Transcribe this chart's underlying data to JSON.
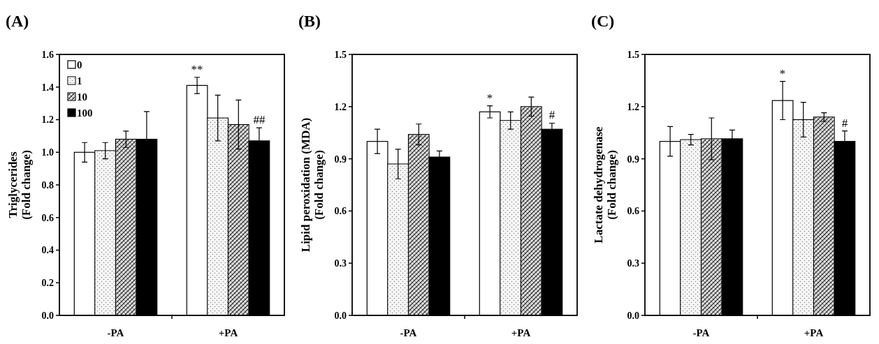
{
  "chart_data": [
    {
      "type": "bar",
      "title": "(A)",
      "ylabel": "Triglycerides\n(Fold change)",
      "categories": [
        "-PA",
        "+PA"
      ],
      "ylim": [
        0,
        1.6
      ],
      "yticks": [
        {
          "value": 0,
          "label": "0.0"
        },
        {
          "value": 0.2,
          "label": "0.2"
        },
        {
          "value": 0.4,
          "label": "0.4"
        },
        {
          "value": 0.6,
          "label": "0.6"
        },
        {
          "value": 0.8,
          "label": "0.8"
        },
        {
          "value": 1,
          "label": "1.0"
        },
        {
          "value": 1.2,
          "label": "1.2"
        },
        {
          "value": 1.4,
          "label": "1.4"
        },
        {
          "value": 1.6,
          "label": "1.6"
        }
      ],
      "legend": "top left",
      "grid": false,
      "series": [
        {
          "name": "0",
          "color": "#ffffff",
          "values": [
            1.0,
            1.41
          ],
          "errors": [
            0.06,
            0.05
          ],
          "value_labels": [
            null,
            "**"
          ]
        },
        {
          "name": "1",
          "color": "#f4f4f4",
          "values": [
            1.01,
            1.21
          ],
          "errors": [
            0.05,
            0.14
          ]
        },
        {
          "name": "10",
          "color": "#dddddd",
          "values": [
            1.08,
            1.17
          ],
          "errors": [
            0.05,
            0.15
          ]
        },
        {
          "name": "100",
          "color": "#000000",
          "values": [
            1.08,
            1.07
          ],
          "errors": [
            0.17,
            0.08
          ],
          "value_labels": [
            null,
            "##"
          ]
        }
      ]
    },
    {
      "type": "bar",
      "title": "(B)",
      "ylabel": "Lipid peroxidation (MDA)\n(Fold change)",
      "categories": [
        "-PA",
        "+PA"
      ],
      "ylim": [
        0,
        1.5
      ],
      "yticks": [
        {
          "value": 0,
          "label": "0.0"
        },
        {
          "value": 0.3,
          "label": "0.3"
        },
        {
          "value": 0.6,
          "label": "0.6"
        },
        {
          "value": 0.9,
          "label": "0.9"
        },
        {
          "value": 1.2,
          "label": "1.2"
        },
        {
          "value": 1.5,
          "label": "1.5"
        }
      ],
      "grid": false,
      "series": [
        {
          "color": "#ffffff",
          "values": [
            1.0,
            1.17
          ],
          "errors": [
            0.07,
            0.035
          ],
          "value_labels": [
            null,
            "*"
          ]
        },
        {
          "color": "#f4f4f4",
          "values": [
            0.87,
            1.12
          ],
          "errors": [
            0.085,
            0.05
          ]
        },
        {
          "color": "#dddddd",
          "values": [
            1.04,
            1.2
          ],
          "errors": [
            0.06,
            0.055
          ]
        },
        {
          "color": "#000000",
          "values": [
            0.91,
            1.07
          ],
          "errors": [
            0.035,
            0.035
          ],
          "value_labels": [
            null,
            "#"
          ]
        }
      ]
    },
    {
      "type": "bar",
      "title": "(C)",
      "ylabel": "Lactate dehydrogenase\n(Fold change)",
      "categories": [
        "-PA",
        "+PA"
      ],
      "ylim": [
        0,
        1.5
      ],
      "yticks": [
        {
          "value": 0,
          "label": "0.0"
        },
        {
          "value": 0.3,
          "label": "0.3"
        },
        {
          "value": 0.6,
          "label": "0.6"
        },
        {
          "value": 0.9,
          "label": "0.9"
        },
        {
          "value": 1.2,
          "label": "1.2"
        },
        {
          "value": 1.5,
          "label": "1.5"
        }
      ],
      "grid": false,
      "series": [
        {
          "color": "#ffffff",
          "values": [
            1.0,
            1.235
          ],
          "errors": [
            0.085,
            0.11
          ],
          "value_labels": [
            null,
            "*"
          ]
        },
        {
          "color": "#f4f4f4",
          "values": [
            1.01,
            1.125
          ],
          "errors": [
            0.03,
            0.1
          ]
        },
        {
          "color": "#dddddd",
          "values": [
            1.015,
            1.14
          ],
          "errors": [
            0.12,
            0.025
          ]
        },
        {
          "color": "#000000",
          "values": [
            1.015,
            1.0
          ],
          "errors": [
            0.05,
            0.06
          ],
          "value_labels": [
            null,
            "#"
          ]
        }
      ]
    }
  ]
}
